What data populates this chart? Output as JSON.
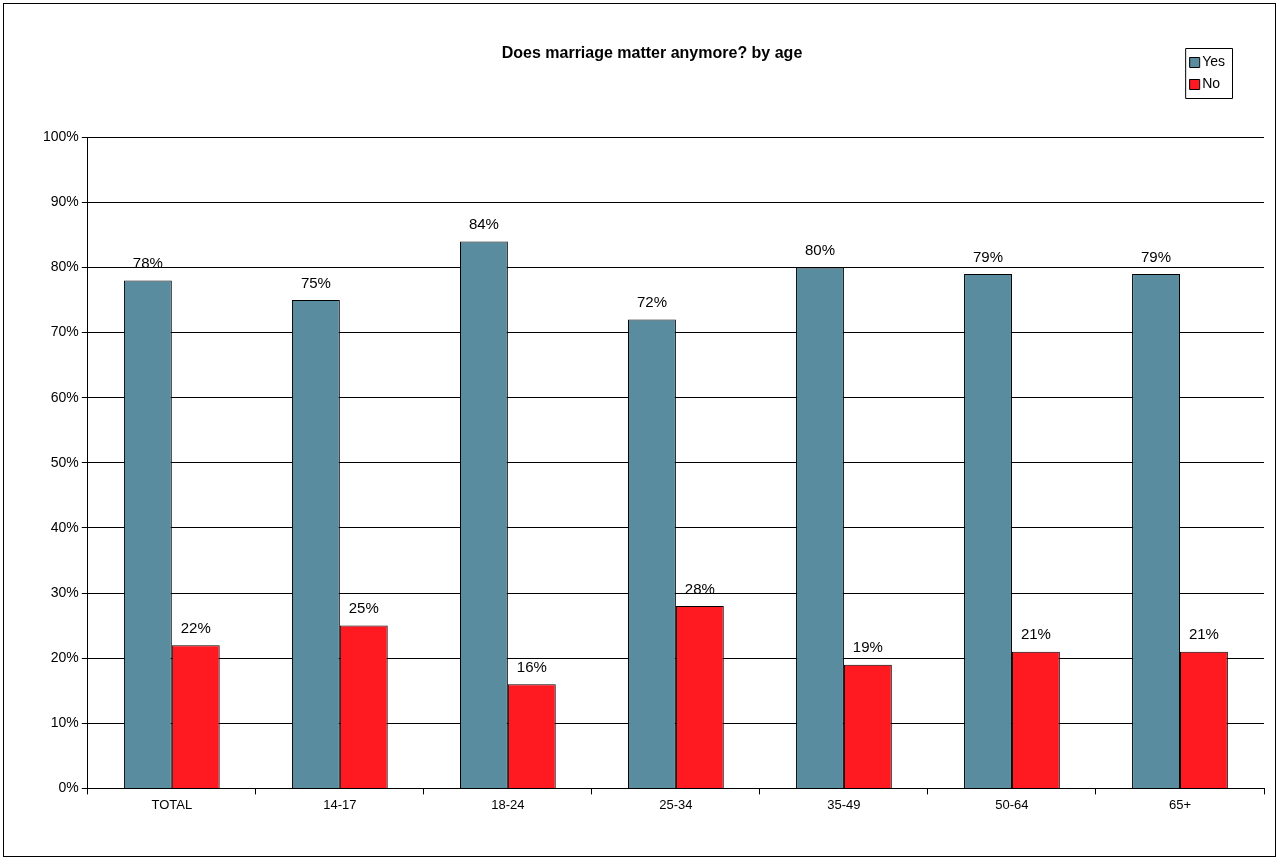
{
  "chart_data": {
    "type": "bar",
    "title": "Does marriage matter anymore? by age",
    "categories": [
      "TOTAL",
      "14-17",
      "18-24",
      "25-34",
      "35-49",
      "50-64",
      "65+"
    ],
    "series": [
      {
        "name": "Yes",
        "color": "#5a8ca0",
        "values": [
          78,
          75,
          84,
          72,
          80,
          79,
          79
        ],
        "value_labels": [
          "78%",
          "75%",
          "84%",
          "72%",
          "80%",
          "79%",
          "79%"
        ]
      },
      {
        "name": "No",
        "color": "#ff1a22",
        "values": [
          22,
          25,
          16,
          28,
          19,
          21,
          21
        ],
        "value_labels": [
          "22%",
          "25%",
          "16%",
          "28%",
          "19%",
          "21%",
          "21%"
        ]
      }
    ],
    "ylim": [
      0,
      100
    ],
    "yticks": [
      {
        "value": 0,
        "label": "0%"
      },
      {
        "value": 10,
        "label": "10%"
      },
      {
        "value": 20,
        "label": "20%"
      },
      {
        "value": 30,
        "label": "30%"
      },
      {
        "value": 40,
        "label": "40%"
      },
      {
        "value": 50,
        "label": "50%"
      },
      {
        "value": 60,
        "label": "60%"
      },
      {
        "value": 70,
        "label": "70%"
      },
      {
        "value": 80,
        "label": "80%"
      },
      {
        "value": 90,
        "label": "90%"
      },
      {
        "value": 100,
        "label": "100%"
      }
    ],
    "grid": "y",
    "legend": "top right"
  }
}
